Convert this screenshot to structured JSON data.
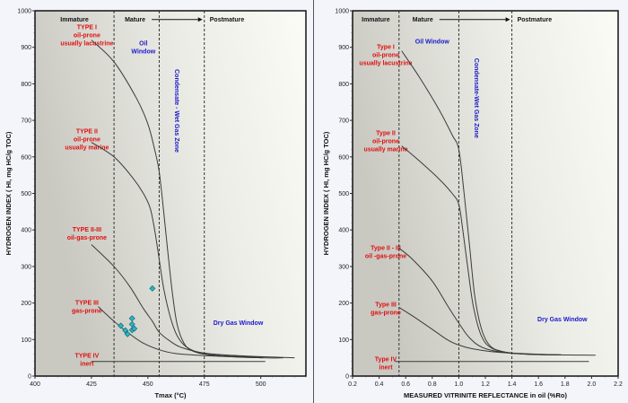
{
  "chart_data": [
    {
      "type": "line",
      "id": "tmax",
      "xlabel": "Tmax (°C)",
      "ylabel": "HYDROGEN INDEX ( HI, mg HC/g TOC)",
      "xlim": [
        400,
        520
      ],
      "ylim": [
        0,
        1000
      ],
      "xticks": [
        400,
        425,
        450,
        475,
        500
      ],
      "yticks": [
        0,
        100,
        200,
        300,
        400,
        500,
        600,
        700,
        800,
        900,
        1000
      ],
      "boundaries": [
        435,
        455,
        475
      ],
      "zones": [
        "Immature",
        "Mature",
        "Postmature"
      ],
      "windows": [
        {
          "text": [
            "Oil",
            "Window"
          ],
          "x": 448,
          "y": 905
        },
        {
          "text": [
            "Condensate - Wet Gas Zone"
          ],
          "x": 462,
          "y": 840,
          "vertical": true
        },
        {
          "text": [
            "Dry Gas Window"
          ],
          "x": 490,
          "y": 140
        }
      ],
      "types": [
        {
          "lines": [
            "TYPE I",
            "oil-prone",
            "usually lacustrine"
          ],
          "x": 423,
          "y": 950
        },
        {
          "lines": [
            "TYPE II",
            "oil-prone",
            "usually marine"
          ],
          "x": 423,
          "y": 665
        },
        {
          "lines": [
            "TYPE II-III",
            "oil-gas-prone"
          ],
          "x": 423,
          "y": 395
        },
        {
          "lines": [
            "TYPE III",
            "gas-prone"
          ],
          "x": 423,
          "y": 195
        },
        {
          "lines": [
            "TYPE IV",
            "inert"
          ],
          "x": 423,
          "y": 50
        }
      ],
      "series": [
        {
          "name": "Type I",
          "points": [
            [
              425,
              920
            ],
            [
              435,
              860
            ],
            [
              445,
              760
            ],
            [
              450,
              690
            ],
            [
              453,
              620
            ],
            [
              455,
              560
            ],
            [
              457,
              450
            ],
            [
              459,
              330
            ],
            [
              461,
              220
            ],
            [
              463,
              140
            ],
            [
              466,
              90
            ],
            [
              470,
              68
            ],
            [
              478,
              57
            ],
            [
              490,
              52
            ],
            [
              501,
              50
            ]
          ]
        },
        {
          "name": "Type II",
          "points": [
            [
              425,
              640
            ],
            [
              435,
              600
            ],
            [
              443,
              545
            ],
            [
              448,
              500
            ],
            [
              451,
              460
            ],
            [
              453,
              400
            ],
            [
              455,
              320
            ],
            [
              457,
              240
            ],
            [
              460,
              160
            ],
            [
              463,
              110
            ],
            [
              467,
              80
            ],
            [
              474,
              62
            ],
            [
              485,
              55
            ],
            [
              501,
              52
            ]
          ]
        },
        {
          "name": "Type II-III",
          "points": [
            [
              425,
              360
            ],
            [
              435,
              300
            ],
            [
              442,
              245
            ],
            [
              448,
              185
            ],
            [
              452,
              150
            ],
            [
              455,
              120
            ],
            [
              460,
              95
            ],
            [
              465,
              78
            ],
            [
              475,
              63
            ],
            [
              490,
              56
            ],
            [
              515,
              50
            ]
          ]
        },
        {
          "name": "Type III",
          "points": [
            [
              428,
              190
            ],
            [
              435,
              150
            ],
            [
              442,
              115
            ],
            [
              448,
              90
            ],
            [
              455,
              72
            ],
            [
              462,
              62
            ],
            [
              475,
              56
            ],
            [
              500,
              50
            ],
            [
              510,
              50
            ]
          ]
        },
        {
          "name": "Type IV",
          "points": [
            [
              425,
              40
            ],
            [
              502,
              40
            ]
          ]
        }
      ],
      "samples": [
        [
          438,
          138
        ],
        [
          440,
          125
        ],
        [
          441,
          115
        ],
        [
          443,
          158
        ],
        [
          443,
          142
        ],
        [
          443,
          126
        ],
        [
          444,
          130
        ],
        [
          452,
          240
        ]
      ]
    },
    {
      "type": "line",
      "id": "ro",
      "xlabel": "MEASURED VITRINITE REFLECTANCE in oil (%Ro)",
      "ylabel": "HYDROGEN INDEX ( HI, mg HC/g TOC)",
      "xlim": [
        0.2,
        2.2
      ],
      "ylim": [
        0,
        1000
      ],
      "xticks": [
        0.2,
        0.4,
        0.6,
        0.8,
        1.0,
        1.2,
        1.4,
        1.6,
        1.8,
        2.0,
        2.2
      ],
      "yticks": [
        0,
        100,
        200,
        300,
        400,
        500,
        600,
        700,
        800,
        900,
        1000
      ],
      "boundaries": [
        0.55,
        1.0,
        1.4
      ],
      "zones": [
        "Immature",
        "Mature",
        "Postmature"
      ],
      "windows": [
        {
          "text": [
            "Oil Window"
          ],
          "x": 0.8,
          "y": 910
        },
        {
          "text": [
            "Condensate-Wet Gas Zone"
          ],
          "x": 1.12,
          "y": 870,
          "vertical": true
        },
        {
          "text": [
            "Dry Gas Window"
          ],
          "x": 1.78,
          "y": 150
        }
      ],
      "types": [
        {
          "lines": [
            "Type I",
            "oil-prone",
            "usually lacustrine"
          ],
          "x": 0.45,
          "y": 895
        },
        {
          "lines": [
            "Type II",
            "oil-prone",
            "usually marine"
          ],
          "x": 0.45,
          "y": 660
        },
        {
          "lines": [
            "Type II - III",
            "oil -gas-prone"
          ],
          "x": 0.45,
          "y": 345
        },
        {
          "lines": [
            "Type III",
            "gas-prone"
          ],
          "x": 0.45,
          "y": 190
        },
        {
          "lines": [
            "Type IV",
            "inert"
          ],
          "x": 0.45,
          "y": 40
        }
      ],
      "series": [
        {
          "name": "Type I",
          "points": [
            [
              0.57,
              890
            ],
            [
              0.7,
              820
            ],
            [
              0.85,
              730
            ],
            [
              0.95,
              660
            ],
            [
              1.0,
              620
            ],
            [
              1.04,
              500
            ],
            [
              1.08,
              360
            ],
            [
              1.12,
              220
            ],
            [
              1.17,
              130
            ],
            [
              1.23,
              85
            ],
            [
              1.32,
              68
            ],
            [
              1.5,
              60
            ],
            [
              1.77,
              58
            ]
          ]
        },
        {
          "name": "Type II",
          "points": [
            [
              0.57,
              630
            ],
            [
              0.7,
              590
            ],
            [
              0.85,
              540
            ],
            [
              0.95,
              500
            ],
            [
              1.0,
              470
            ],
            [
              1.03,
              400
            ],
            [
              1.07,
              290
            ],
            [
              1.11,
              190
            ],
            [
              1.17,
              110
            ],
            [
              1.25,
              76
            ],
            [
              1.4,
              63
            ],
            [
              1.6,
              59
            ],
            [
              1.77,
              58
            ]
          ]
        },
        {
          "name": "Type II-III",
          "points": [
            [
              0.55,
              350
            ],
            [
              0.65,
              320
            ],
            [
              0.8,
              260
            ],
            [
              0.92,
              190
            ],
            [
              1.0,
              145
            ],
            [
              1.08,
              105
            ],
            [
              1.18,
              78
            ],
            [
              1.35,
              64
            ],
            [
              1.6,
              59
            ],
            [
              2.03,
              57
            ]
          ]
        },
        {
          "name": "Type III",
          "points": [
            [
              0.55,
              188
            ],
            [
              0.65,
              165
            ],
            [
              0.8,
              128
            ],
            [
              0.92,
              98
            ],
            [
              1.0,
              85
            ],
            [
              1.1,
              75
            ],
            [
              1.3,
              65
            ],
            [
              1.6,
              60
            ],
            [
              1.77,
              58
            ]
          ]
        },
        {
          "name": "Type IV",
          "points": [
            [
              0.52,
              40
            ],
            [
              1.98,
              40
            ]
          ]
        }
      ],
      "samples": []
    }
  ]
}
